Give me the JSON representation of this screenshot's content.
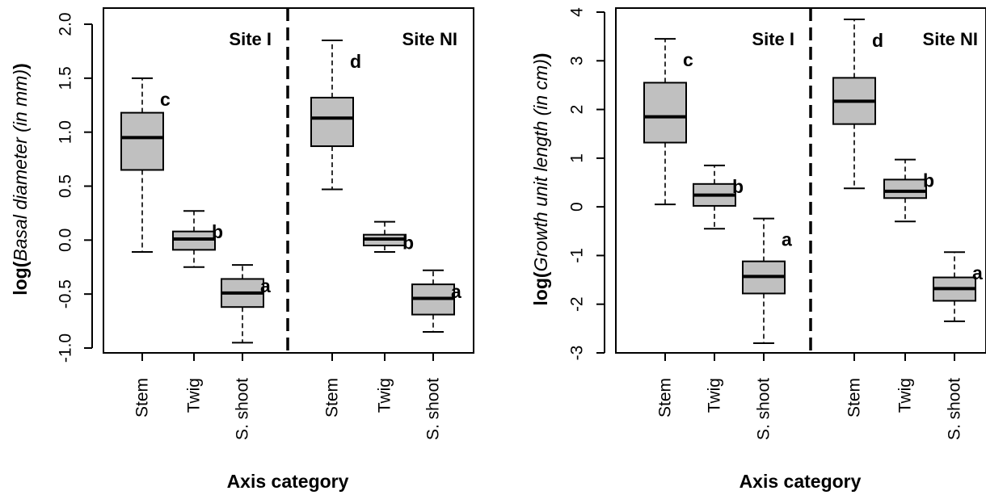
{
  "chart_data": [
    {
      "type": "box",
      "ylabel_prefix": "log(",
      "ylabel_italic": "Basal diameter (in mm)",
      "ylabel_suffix": ")",
      "xlabel": "Axis category",
      "ylim": [
        -1.0,
        2.0
      ],
      "yticks": [
        -1.0,
        -0.5,
        0.0,
        0.5,
        1.0,
        1.5,
        2.0
      ],
      "ytick_labels": [
        "-1.0",
        "-0.5",
        "0.0",
        "0.5",
        "1.0",
        "1.5",
        "2.0"
      ],
      "box_fill": "#c0c0c0",
      "divider_color": "#000000",
      "groups": [
        {
          "site": "Site I",
          "boxes": [
            {
              "category": "Stem",
              "whisker_low": -0.11,
              "q1": 0.65,
              "median": 0.95,
              "q3": 1.18,
              "whisker_high": 1.5,
              "letter": "c"
            },
            {
              "category": "Twig",
              "whisker_low": -0.25,
              "q1": -0.09,
              "median": 0.01,
              "q3": 0.08,
              "whisker_high": 0.27,
              "letter": "b"
            },
            {
              "category": "S. shoot",
              "whisker_low": -0.95,
              "q1": -0.62,
              "median": -0.49,
              "q3": -0.36,
              "whisker_high": -0.23,
              "letter": "a"
            }
          ]
        },
        {
          "site": "Site NI",
          "boxes": [
            {
              "category": "Stem",
              "whisker_low": 0.47,
              "q1": 0.87,
              "median": 1.13,
              "q3": 1.32,
              "whisker_high": 1.85,
              "letter": "d"
            },
            {
              "category": "Twig",
              "whisker_low": -0.11,
              "q1": -0.05,
              "median": 0.01,
              "q3": 0.05,
              "whisker_high": 0.17,
              "letter": "b"
            },
            {
              "category": "S. shoot",
              "whisker_low": -0.85,
              "q1": -0.69,
              "median": -0.54,
              "q3": -0.41,
              "whisker_high": -0.28,
              "letter": "a"
            }
          ]
        }
      ]
    },
    {
      "type": "box",
      "ylabel_prefix": "log(",
      "ylabel_italic": "Growth unit length (in cm)",
      "ylabel_suffix": ")",
      "xlabel": "Axis category",
      "ylim": [
        -3,
        4
      ],
      "yticks": [
        -3,
        -2,
        -1,
        0,
        1,
        2,
        3,
        4
      ],
      "ytick_labels": [
        "-3",
        "-2",
        "-1",
        "0",
        "1",
        "2",
        "3",
        "4"
      ],
      "box_fill": "#c0c0c0",
      "divider_color": "#000000",
      "groups": [
        {
          "site": "Site I",
          "boxes": [
            {
              "category": "Stem",
              "whisker_low": 0.05,
              "q1": 1.32,
              "median": 1.85,
              "q3": 2.55,
              "whisker_high": 3.45,
              "letter": "c"
            },
            {
              "category": "Twig",
              "whisker_low": -0.45,
              "q1": 0.02,
              "median": 0.24,
              "q3": 0.47,
              "whisker_high": 0.85,
              "letter": "b"
            },
            {
              "category": "S. shoot",
              "whisker_low": -2.8,
              "q1": -1.78,
              "median": -1.43,
              "q3": -1.12,
              "whisker_high": -0.24,
              "letter": "a"
            }
          ]
        },
        {
          "site": "Site NI",
          "boxes": [
            {
              "category": "Stem",
              "whisker_low": 0.38,
              "q1": 1.7,
              "median": 2.17,
              "q3": 2.65,
              "whisker_high": 3.85,
              "letter": "d"
            },
            {
              "category": "Twig",
              "whisker_low": -0.3,
              "q1": 0.18,
              "median": 0.32,
              "q3": 0.56,
              "whisker_high": 0.97,
              "letter": "b"
            },
            {
              "category": "S. shoot",
              "whisker_low": -2.35,
              "q1": -1.93,
              "median": -1.68,
              "q3": -1.45,
              "whisker_high": -0.93,
              "letter": "a"
            }
          ]
        }
      ]
    }
  ]
}
